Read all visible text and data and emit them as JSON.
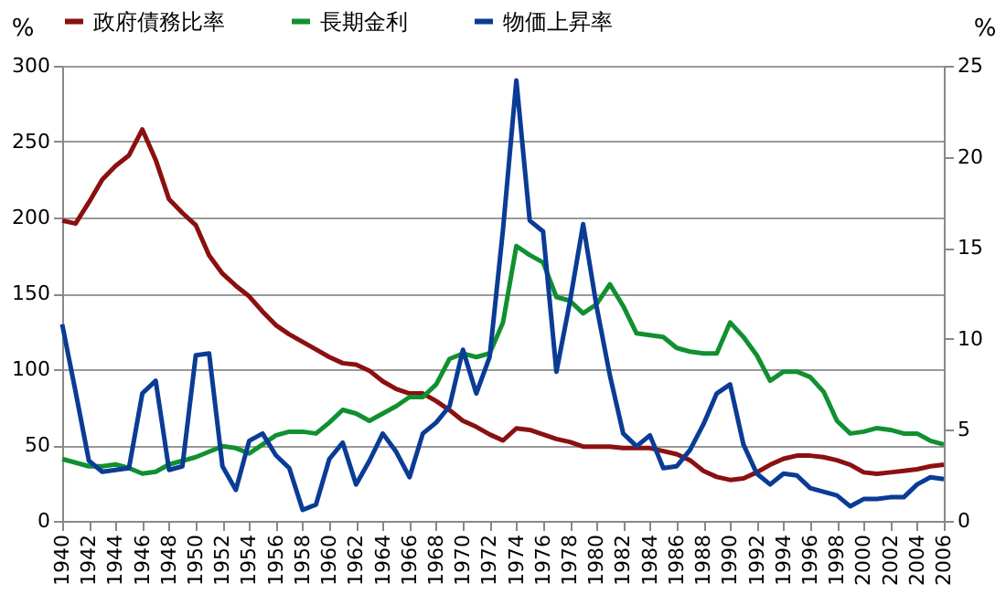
{
  "chart_data": {
    "type": "line",
    "ylabel": "%",
    "y2label": "%",
    "x": [
      1940,
      1941,
      1942,
      1943,
      1944,
      1945,
      1946,
      1947,
      1948,
      1949,
      1950,
      1951,
      1952,
      1953,
      1954,
      1955,
      1956,
      1957,
      1958,
      1959,
      1960,
      1961,
      1962,
      1963,
      1964,
      1965,
      1966,
      1967,
      1968,
      1969,
      1970,
      1971,
      1972,
      1973,
      1974,
      1975,
      1976,
      1977,
      1978,
      1979,
      1980,
      1981,
      1982,
      1983,
      1984,
      1985,
      1986,
      1987,
      1988,
      1989,
      1990,
      1991,
      1992,
      1993,
      1994,
      1995,
      1996,
      1997,
      1998,
      1999,
      2000,
      2001,
      2002,
      2003,
      2004,
      2005,
      2006
    ],
    "series": [
      {
        "name": "政府債務比率",
        "color": "#8b1010",
        "values": [
          198,
          196,
          210,
          225,
          234,
          241,
          258,
          238,
          212,
          203,
          195,
          175,
          163,
          155,
          148,
          138,
          129,
          123,
          118,
          113,
          108,
          104,
          103,
          99,
          92,
          87,
          84,
          84,
          79,
          73,
          66,
          62,
          57,
          53,
          61,
          60,
          57,
          54,
          52,
          49,
          49,
          49,
          48,
          48,
          48,
          46,
          44,
          40,
          33,
          29,
          27,
          28,
          32,
          37,
          41,
          43,
          43,
          42,
          40,
          37,
          32,
          31,
          32,
          33,
          34,
          36,
          37
        ]
      },
      {
        "name": "長期金利",
        "color": "#109030",
        "axis": "y2",
        "values": [
          3.4,
          3.2,
          3.0,
          3.0,
          3.1,
          2.9,
          2.6,
          2.7,
          3.1,
          3.3,
          3.5,
          3.8,
          4.1,
          4.0,
          3.7,
          4.2,
          4.7,
          4.9,
          4.9,
          4.8,
          5.4,
          6.1,
          5.9,
          5.5,
          5.9,
          6.3,
          6.8,
          6.8,
          7.5,
          8.9,
          9.2,
          9.0,
          9.2,
          10.9,
          15.1,
          14.6,
          14.2,
          12.3,
          12.1,
          11.4,
          11.9,
          13.0,
          11.8,
          10.3,
          10.2,
          10.1,
          9.5,
          9.3,
          9.2,
          9.2,
          10.9,
          10.1,
          9.1,
          7.7,
          8.2,
          8.2,
          7.9,
          7.1,
          5.5,
          4.8,
          4.9,
          5.1,
          5.0,
          4.8,
          4.8,
          4.4,
          4.2
        ]
      },
      {
        "name": "物価上昇率",
        "color": "#0a3c96",
        "axis": "y2",
        "values": [
          10.8,
          7.1,
          3.3,
          2.7,
          2.8,
          2.9,
          7.0,
          7.7,
          2.8,
          3.0,
          9.1,
          9.2,
          3.0,
          1.7,
          4.4,
          4.8,
          3.6,
          2.9,
          0.6,
          0.9,
          3.4,
          4.3,
          2.0,
          3.3,
          4.8,
          3.8,
          2.4,
          4.8,
          5.4,
          6.3,
          9.4,
          7.0,
          9.0,
          16.0,
          24.2,
          16.5,
          15.9,
          8.2,
          12.0,
          16.3,
          11.8,
          8.0,
          4.8,
          4.1,
          4.7,
          2.9,
          3.0,
          3.9,
          5.3,
          7.0,
          7.5,
          4.2,
          2.6,
          2.0,
          2.6,
          2.5,
          1.8,
          1.6,
          1.4,
          0.8,
          1.2,
          1.2,
          1.3,
          1.3,
          2.0,
          2.4,
          2.3
        ]
      }
    ],
    "xlim": [
      1940,
      2006
    ],
    "xticks": [
      1940,
      1942,
      1944,
      1946,
      1948,
      1950,
      1952,
      1954,
      1956,
      1958,
      1960,
      1962,
      1964,
      1966,
      1968,
      1970,
      1972,
      1974,
      1976,
      1978,
      1980,
      1982,
      1984,
      1986,
      1988,
      1990,
      1992,
      1994,
      1996,
      1998,
      2000,
      2002,
      2004,
      2006
    ],
    "ylim": [
      0,
      300
    ],
    "yticks": [
      0,
      50,
      100,
      150,
      200,
      250,
      300
    ],
    "y2lim": [
      0,
      25
    ],
    "y2ticks": [
      0,
      5,
      10,
      15,
      20,
      25
    ],
    "grid": "y",
    "legend": "top",
    "line_style": "solid"
  }
}
